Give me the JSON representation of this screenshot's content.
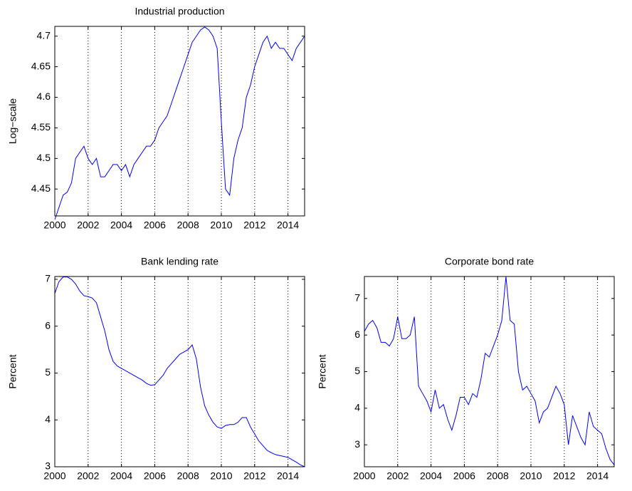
{
  "chart_data": [
    {
      "type": "line",
      "title": "Industrial production",
      "y_label": "Log−scale",
      "x": [
        2000,
        2000.25,
        2000.5,
        2000.75,
        2001,
        2001.25,
        2001.5,
        2001.75,
        2002,
        2002.25,
        2002.5,
        2002.75,
        2003,
        2003.25,
        2003.5,
        2003.75,
        2004,
        2004.25,
        2004.5,
        2004.75,
        2005,
        2005.25,
        2005.5,
        2005.75,
        2006,
        2006.25,
        2006.5,
        2006.75,
        2007,
        2007.25,
        2007.5,
        2007.75,
        2008,
        2008.25,
        2008.5,
        2008.75,
        2009,
        2009.25,
        2009.5,
        2009.75,
        2010,
        2010.25,
        2010.5,
        2010.75,
        2011,
        2011.25,
        2011.5,
        2011.75,
        2012,
        2012.25,
        2012.5,
        2012.75,
        2013,
        2013.25,
        2013.5,
        2013.75,
        2014,
        2014.25,
        2014.5,
        2014.75,
        2015
      ],
      "series": [
        {
          "color": "#0000ff",
          "values": [
            4.4,
            4.42,
            4.44,
            4.445,
            4.46,
            4.5,
            4.51,
            4.52,
            4.5,
            4.49,
            4.5,
            4.47,
            4.47,
            4.48,
            4.49,
            4.49,
            4.48,
            4.49,
            4.47,
            4.49,
            4.5,
            4.51,
            4.52,
            4.52,
            4.53,
            4.55,
            4.56,
            4.57,
            4.59,
            4.61,
            4.63,
            4.65,
            4.67,
            4.69,
            4.7,
            4.71,
            4.715,
            4.71,
            4.7,
            4.68,
            4.56,
            4.45,
            4.44,
            4.5,
            4.53,
            4.55,
            4.6,
            4.62,
            4.65,
            4.67,
            4.69,
            4.7,
            4.68,
            4.69,
            4.68,
            4.68,
            4.67,
            4.66,
            4.68,
            4.69,
            4.7
          ]
        }
      ],
      "xlim": [
        2000,
        2015
      ],
      "xticks": [
        2000,
        2002,
        2004,
        2006,
        2008,
        2010,
        2012,
        2014
      ],
      "ylim": [
        4.406,
        4.716
      ],
      "yticks": [
        4.45,
        4.5,
        4.55,
        4.6,
        4.65,
        4.7
      ],
      "grid": "x"
    },
    {
      "type": "line",
      "title": "Bank lending rate",
      "y_label": "Percent",
      "x": [
        2000,
        2000.25,
        2000.5,
        2000.75,
        2001,
        2001.25,
        2001.5,
        2001.75,
        2002,
        2002.25,
        2002.5,
        2002.75,
        2003,
        2003.25,
        2003.5,
        2003.75,
        2004,
        2004.25,
        2004.5,
        2004.75,
        2005,
        2005.25,
        2005.5,
        2005.75,
        2006,
        2006.25,
        2006.5,
        2006.75,
        2007,
        2007.25,
        2007.5,
        2007.75,
        2008,
        2008.25,
        2008.5,
        2008.75,
        2009,
        2009.25,
        2009.5,
        2009.75,
        2010,
        2010.25,
        2010.5,
        2010.75,
        2011,
        2011.25,
        2011.5,
        2011.75,
        2012,
        2012.25,
        2012.5,
        2012.75,
        2013,
        2013.25,
        2013.5,
        2013.75,
        2014,
        2014.25,
        2014.5,
        2014.75,
        2015
      ],
      "series": [
        {
          "color": "#0000ff",
          "values": [
            6.7,
            6.95,
            7.05,
            7.05,
            7.0,
            6.9,
            6.75,
            6.65,
            6.63,
            6.6,
            6.5,
            6.2,
            5.9,
            5.5,
            5.25,
            5.15,
            5.1,
            5.05,
            5.0,
            4.95,
            4.9,
            4.85,
            4.78,
            4.74,
            4.75,
            4.85,
            4.95,
            5.1,
            5.2,
            5.3,
            5.4,
            5.45,
            5.5,
            5.6,
            5.3,
            4.7,
            4.3,
            4.1,
            3.95,
            3.85,
            3.82,
            3.88,
            3.9,
            3.9,
            3.95,
            4.05,
            4.05,
            3.85,
            3.7,
            3.55,
            3.45,
            3.35,
            3.3,
            3.26,
            3.24,
            3.22,
            3.2,
            3.15,
            3.1,
            3.04,
            3.0
          ]
        }
      ],
      "xlim": [
        2000,
        2015
      ],
      "xticks": [
        2000,
        2002,
        2004,
        2006,
        2008,
        2010,
        2012,
        2014
      ],
      "ylim": [
        3,
        7.06
      ],
      "yticks": [
        3,
        4,
        5,
        6,
        7
      ],
      "grid": "x"
    },
    {
      "type": "line",
      "title": "Corporate bond rate",
      "y_label": "Percent",
      "x": [
        2000,
        2000.25,
        2000.5,
        2000.75,
        2001,
        2001.25,
        2001.5,
        2001.75,
        2002,
        2002.25,
        2002.5,
        2002.75,
        2003,
        2003.25,
        2003.5,
        2003.75,
        2004,
        2004.25,
        2004.5,
        2004.75,
        2005,
        2005.25,
        2005.5,
        2005.75,
        2006,
        2006.25,
        2006.5,
        2006.75,
        2007,
        2007.25,
        2007.5,
        2007.75,
        2008,
        2008.25,
        2008.5,
        2008.75,
        2009,
        2009.25,
        2009.5,
        2009.75,
        2010,
        2010.25,
        2010.5,
        2010.75,
        2011,
        2011.25,
        2011.5,
        2011.75,
        2012,
        2012.25,
        2012.5,
        2012.75,
        2013,
        2013.25,
        2013.5,
        2013.75,
        2014,
        2014.25,
        2014.5,
        2014.75,
        2015
      ],
      "series": [
        {
          "color": "#0000ff",
          "values": [
            6.1,
            6.3,
            6.4,
            6.2,
            5.8,
            5.8,
            5.7,
            5.9,
            6.5,
            5.9,
            5.9,
            6.0,
            6.5,
            4.6,
            4.4,
            4.2,
            3.9,
            4.5,
            4.0,
            4.1,
            3.7,
            3.4,
            3.8,
            4.3,
            4.3,
            4.1,
            4.4,
            4.3,
            4.8,
            5.5,
            5.4,
            5.7,
            6.0,
            6.4,
            7.6,
            6.4,
            6.3,
            5.0,
            4.5,
            4.6,
            4.4,
            4.2,
            3.6,
            3.9,
            4.0,
            4.3,
            4.6,
            4.4,
            4.1,
            3.0,
            3.8,
            3.5,
            3.2,
            3.0,
            3.9,
            3.5,
            3.4,
            3.3,
            2.9,
            2.6,
            2.45
          ]
        }
      ],
      "xlim": [
        2000,
        2015
      ],
      "xticks": [
        2000,
        2002,
        2004,
        2006,
        2008,
        2010,
        2012,
        2014
      ],
      "ylim": [
        2.4,
        7.6
      ],
      "yticks": [
        3,
        4,
        5,
        6,
        7
      ],
      "grid": "x"
    }
  ]
}
